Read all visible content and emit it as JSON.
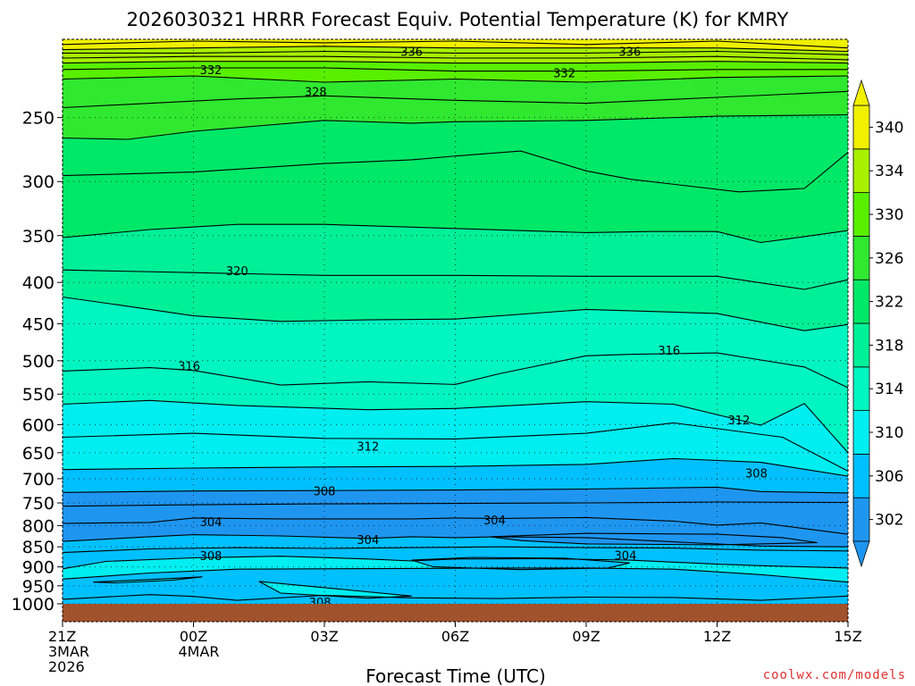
{
  "chart_data": {
    "type": "contour",
    "title": "2026030321 HRRR Forecast Equiv. Potential Temperature (K) for KMRY",
    "xlabel": "Forecast Time (UTC)",
    "ylabel": "",
    "credit": "coolwx.com/models",
    "x_hours": [
      0,
      3,
      6,
      9,
      12,
      15,
      18
    ],
    "x_tick_labels": [
      [
        "21Z",
        "3MAR",
        "2026"
      ],
      [
        "00Z",
        "4MAR"
      ],
      [
        "03Z"
      ],
      [
        "06Z"
      ],
      [
        "09Z"
      ],
      [
        "12Z"
      ],
      [
        "15Z"
      ]
    ],
    "y_levels_hpa": [
      250,
      300,
      350,
      400,
      450,
      500,
      550,
      600,
      650,
      700,
      750,
      800,
      850,
      900,
      950,
      1000
    ],
    "y_range_hpa": [
      200,
      1020
    ],
    "colorbar": {
      "ticks": [
        302,
        306,
        310,
        314,
        318,
        322,
        326,
        330,
        334,
        340
      ],
      "intervals": [
        {
          "lo": 300,
          "hi": 304,
          "color": "#1e96f0"
        },
        {
          "lo": 304,
          "hi": 308,
          "color": "#00c0ff"
        },
        {
          "lo": 308,
          "hi": 312,
          "color": "#00eef0"
        },
        {
          "lo": 312,
          "hi": 316,
          "color": "#00f5c0"
        },
        {
          "lo": 316,
          "hi": 320,
          "color": "#00f098"
        },
        {
          "lo": 320,
          "hi": 324,
          "color": "#00e868"
        },
        {
          "lo": 324,
          "hi": 328,
          "color": "#30e830"
        },
        {
          "lo": 328,
          "hi": 332,
          "color": "#58f000"
        },
        {
          "lo": 332,
          "hi": 336,
          "color": "#a8f000"
        },
        {
          "lo": 336,
          "hi": 340,
          "color": "#f0f000"
        }
      ]
    },
    "contour_labels": [
      {
        "value": "336",
        "hour": 8.0,
        "hpa": 207
      },
      {
        "value": "336",
        "hour": 13.0,
        "hpa": 207
      },
      {
        "value": "332",
        "hour": 3.4,
        "hpa": 218
      },
      {
        "value": "332",
        "hour": 11.5,
        "hpa": 220
      },
      {
        "value": "328",
        "hour": 5.8,
        "hpa": 232
      },
      {
        "value": "320",
        "hour": 4.0,
        "hpa": 387
      },
      {
        "value": "316",
        "hour": 2.9,
        "hpa": 507
      },
      {
        "value": "316",
        "hour": 13.9,
        "hpa": 485
      },
      {
        "value": "312",
        "hour": 15.5,
        "hpa": 592
      },
      {
        "value": "312",
        "hour": 7.0,
        "hpa": 638
      },
      {
        "value": "308",
        "hour": 15.9,
        "hpa": 689
      },
      {
        "value": "308",
        "hour": 6.0,
        "hpa": 725
      },
      {
        "value": "304",
        "hour": 3.4,
        "hpa": 791
      },
      {
        "value": "304",
        "hour": 9.9,
        "hpa": 787
      },
      {
        "value": "304",
        "hour": 7.0,
        "hpa": 832
      },
      {
        "value": "304",
        "hour": 12.9,
        "hpa": 870
      },
      {
        "value": "308",
        "hour": 3.4,
        "hpa": 872
      },
      {
        "value": "308",
        "hour": 5.9,
        "hpa": 995
      }
    ],
    "contour_lines": [
      [
        [
          0,
          203
        ],
        [
          3,
          201
        ],
        [
          6,
          202
        ],
        [
          9,
          201
        ],
        [
          12,
          203
        ],
        [
          15,
          201
        ],
        [
          18,
          205
        ]
      ],
      [
        [
          0,
          206
        ],
        [
          3,
          205
        ],
        [
          6,
          204
        ],
        [
          9,
          205
        ],
        [
          12,
          205
        ],
        [
          15,
          205
        ],
        [
          18,
          207
        ]
      ],
      [
        [
          0,
          208
        ],
        [
          3,
          208
        ],
        [
          6,
          207
        ],
        [
          9,
          208
        ],
        [
          12,
          208
        ],
        [
          15,
          207
        ],
        [
          18,
          209
        ]
      ],
      [
        [
          0,
          211
        ],
        [
          3,
          210
        ],
        [
          6,
          210
        ],
        [
          9,
          211
        ],
        [
          12,
          211
        ],
        [
          15,
          210
        ],
        [
          18,
          212
        ]
      ],
      [
        [
          0,
          214
        ],
        [
          3,
          213
        ],
        [
          6,
          213
        ],
        [
          9,
          214
        ],
        [
          12,
          214
        ],
        [
          15,
          213
        ],
        [
          18,
          214
        ]
      ],
      [
        [
          0,
          218
        ],
        [
          3,
          217
        ],
        [
          6,
          217
        ],
        [
          9,
          219
        ],
        [
          12,
          219
        ],
        [
          15,
          218
        ],
        [
          18,
          218
        ]
      ],
      [
        [
          0,
          224
        ],
        [
          3,
          222
        ],
        [
          6,
          226
        ],
        [
          9,
          224
        ],
        [
          12,
          226
        ],
        [
          15,
          223
        ],
        [
          18,
          222
        ]
      ],
      [
        [
          0,
          243
        ],
        [
          4,
          237
        ],
        [
          6,
          235
        ],
        [
          9,
          238
        ],
        [
          12,
          240
        ],
        [
          15,
          236
        ],
        [
          18,
          232
        ]
      ],
      [
        [
          0,
          265
        ],
        [
          1.5,
          266
        ],
        [
          3,
          260
        ],
        [
          6,
          252
        ],
        [
          8,
          254
        ],
        [
          9,
          253
        ],
        [
          12,
          252
        ],
        [
          15,
          249
        ],
        [
          18,
          248
        ]
      ],
      [
        [
          0,
          295
        ],
        [
          3,
          292
        ],
        [
          6,
          285
        ],
        [
          8,
          282
        ],
        [
          9,
          279
        ],
        [
          10.5,
          275
        ],
        [
          12,
          291
        ],
        [
          13,
          298
        ],
        [
          15.5,
          309
        ],
        [
          17,
          306
        ],
        [
          18,
          276
        ]
      ],
      [
        [
          0,
          352
        ],
        [
          2,
          344
        ],
        [
          4,
          339
        ],
        [
          6,
          339
        ],
        [
          9,
          343
        ],
        [
          12,
          347
        ],
        [
          13.5,
          346
        ],
        [
          15,
          346
        ],
        [
          16,
          357
        ],
        [
          17,
          351
        ],
        [
          18,
          345
        ]
      ],
      [
        [
          0,
          386
        ],
        [
          3,
          389
        ],
        [
          6,
          392
        ],
        [
          9,
          392
        ],
        [
          12,
          393
        ],
        [
          15,
          393
        ],
        [
          17,
          408
        ],
        [
          18,
          397
        ]
      ],
      [
        [
          0,
          417
        ],
        [
          2,
          432
        ],
        [
          3,
          440
        ],
        [
          5,
          447
        ],
        [
          7,
          445
        ],
        [
          9,
          444
        ],
        [
          12,
          432
        ],
        [
          15,
          437
        ],
        [
          17,
          459
        ],
        [
          18,
          451
        ]
      ],
      [
        [
          0,
          515
        ],
        [
          2,
          510
        ],
        [
          3,
          514
        ],
        [
          5,
          536
        ],
        [
          7,
          531
        ],
        [
          9,
          535
        ],
        [
          10,
          519
        ],
        [
          12,
          493
        ],
        [
          13,
          491
        ],
        [
          15,
          489
        ],
        [
          16,
          499
        ],
        [
          17,
          509
        ],
        [
          18,
          540
        ],
        [
          18,
          580
        ]
      ],
      [
        [
          0,
          566
        ],
        [
          2,
          560
        ],
        [
          4,
          568
        ],
        [
          7,
          575
        ],
        [
          9,
          573
        ],
        [
          12,
          562
        ],
        [
          14,
          566
        ],
        [
          15.5,
          592
        ],
        [
          16,
          601
        ],
        [
          17,
          565
        ],
        [
          18,
          650
        ]
      ],
      [
        [
          0,
          622
        ],
        [
          3,
          615
        ],
        [
          6,
          624
        ],
        [
          9,
          625
        ],
        [
          12,
          615
        ],
        [
          14,
          597
        ],
        [
          16.5,
          622
        ],
        [
          18,
          685
        ]
      ],
      [
        [
          0,
          682
        ],
        [
          3,
          679
        ],
        [
          6,
          677
        ],
        [
          9,
          676
        ],
        [
          12,
          672
        ],
        [
          14,
          661
        ],
        [
          16,
          668
        ],
        [
          18,
          695
        ]
      ],
      [
        [
          0,
          728
        ],
        [
          3,
          725
        ],
        [
          6,
          724
        ],
        [
          9,
          723
        ],
        [
          12,
          721
        ],
        [
          15,
          717
        ],
        [
          16,
          726
        ],
        [
          18,
          729
        ]
      ],
      [
        [
          0,
          757
        ],
        [
          3,
          754
        ],
        [
          6,
          752
        ],
        [
          9,
          751
        ],
        [
          12,
          750
        ],
        [
          15,
          748
        ],
        [
          18,
          749
        ]
      ],
      [
        [
          0,
          795
        ],
        [
          2,
          793
        ],
        [
          3,
          783
        ],
        [
          5,
          785
        ],
        [
          7,
          785
        ],
        [
          8,
          785
        ],
        [
          9,
          783
        ],
        [
          10,
          784
        ],
        [
          12,
          782
        ],
        [
          14,
          790
        ],
        [
          15,
          799
        ],
        [
          16,
          794
        ],
        [
          18,
          820
        ]
      ],
      [
        [
          0,
          837
        ],
        [
          2,
          826
        ],
        [
          3,
          821
        ],
        [
          5,
          824
        ],
        [
          7,
          830
        ],
        [
          8,
          826
        ],
        [
          9,
          828
        ],
        [
          10,
          826
        ],
        [
          12,
          828
        ],
        [
          14,
          838
        ],
        [
          16,
          848
        ],
        [
          18,
          850
        ]
      ],
      [
        [
          0,
          864
        ],
        [
          2,
          855
        ],
        [
          4,
          852
        ],
        [
          6,
          854
        ],
        [
          8,
          852
        ],
        [
          10,
          850
        ],
        [
          12,
          852
        ],
        [
          14,
          853
        ],
        [
          16,
          858
        ],
        [
          18,
          860
        ]
      ],
      [
        [
          0,
          905
        ],
        [
          1,
          886
        ],
        [
          3,
          877
        ],
        [
          5,
          873
        ],
        [
          7,
          880
        ],
        [
          8,
          885
        ],
        [
          9,
          880
        ],
        [
          11,
          879
        ],
        [
          13,
          883
        ],
        [
          15,
          893
        ],
        [
          16,
          897
        ],
        [
          18,
          903
        ]
      ],
      [
        [
          0,
          932
        ],
        [
          2,
          916
        ],
        [
          4,
          906
        ],
        [
          6,
          905
        ],
        [
          8,
          904
        ],
        [
          10,
          903
        ],
        [
          12,
          903
        ],
        [
          14,
          906
        ],
        [
          16,
          920
        ],
        [
          18,
          940
        ]
      ],
      [
        [
          0,
          987
        ],
        [
          2,
          974
        ],
        [
          3,
          979
        ],
        [
          4,
          990
        ],
        [
          6,
          976
        ],
        [
          8,
          983
        ],
        [
          10,
          985
        ],
        [
          12,
          981
        ],
        [
          14,
          982
        ],
        [
          16,
          990
        ],
        [
          18,
          978
        ]
      ]
    ],
    "closed_contours": [
      [
        [
          8,
          883
        ],
        [
          9.4,
          876
        ],
        [
          11.5,
          878
        ],
        [
          13,
          890
        ],
        [
          12.5,
          903
        ],
        [
          10.5,
          907
        ],
        [
          8.5,
          900
        ],
        [
          8,
          883
        ]
      ],
      [
        [
          0.7,
          940
        ],
        [
          2,
          933
        ],
        [
          3.2,
          926
        ],
        [
          2.5,
          935
        ],
        [
          1.2,
          942
        ],
        [
          0.7,
          940
        ]
      ],
      [
        [
          9.8,
          826
        ],
        [
          12,
          818
        ],
        [
          15,
          820
        ],
        [
          16.5,
          828
        ],
        [
          17.3,
          840
        ],
        [
          15,
          845
        ],
        [
          12,
          843
        ],
        [
          10.5,
          835
        ],
        [
          9.8,
          826
        ]
      ],
      [
        [
          4.5,
          938
        ],
        [
          6,
          955
        ],
        [
          8,
          978
        ],
        [
          7,
          984
        ],
        [
          5,
          970
        ],
        [
          4.5,
          938
        ]
      ]
    ]
  }
}
